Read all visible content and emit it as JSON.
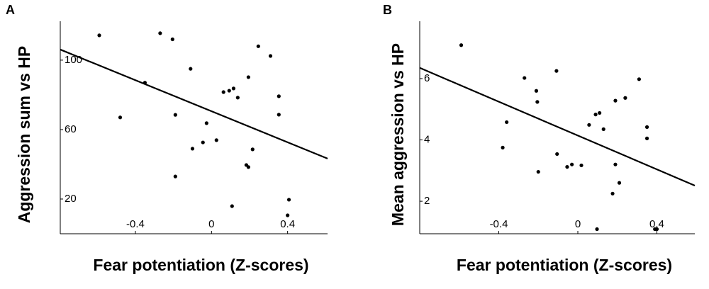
{
  "chart_data": [
    {
      "type": "scatter",
      "panel_label": "A",
      "x_label": "Fear potentiation (Z-scores)",
      "y_label": "Aggression sum vs HP",
      "color": "#000000",
      "x": [
        -0.59,
        -0.27,
        -0.205,
        -0.35,
        -0.48,
        -0.19,
        -0.19,
        -0.11,
        -0.1,
        -0.045,
        -0.026,
        0.026,
        0.063,
        0.093,
        0.116,
        0.138,
        0.194,
        0.183,
        0.194,
        0.216,
        0.108,
        0.246,
        0.31,
        0.354,
        0.354,
        0.407,
        0.4
      ],
      "y": [
        114.3,
        115.5,
        112,
        87,
        67,
        68.5,
        33,
        95,
        49,
        52.6,
        63.7,
        53.9,
        81.6,
        82.4,
        83.7,
        78.4,
        90.2,
        39.6,
        38.4,
        48.6,
        15.9,
        108,
        102.4,
        79.2,
        68.6,
        19.6,
        10.6
      ],
      "fit_line": {
        "x": [
          -0.795,
          0.61
        ],
        "y": [
          106.1,
          43.3
        ]
      },
      "xlim": [
        -0.795,
        0.61
      ],
      "ylim": [
        0,
        122.4
      ],
      "xticks": [
        -0.4,
        0,
        0.4
      ],
      "yticks": [
        20,
        60,
        100
      ]
    },
    {
      "type": "scatter",
      "panel_label": "B",
      "x_label": "Fear potentiation (Z-scores)",
      "y_label": "Mean aggression vs HP",
      "color": "#000000",
      "x": [
        -0.59,
        -0.27,
        -0.21,
        -0.205,
        -0.108,
        -0.36,
        -0.38,
        -0.2,
        -0.105,
        -0.054,
        -0.03,
        0.018,
        0.057,
        0.09,
        0.11,
        0.13,
        0.19,
        0.24,
        0.31,
        0.35,
        0.35,
        0.19,
        0.21,
        0.176,
        0.097,
        0.39,
        0.4
      ],
      "y": [
        7.09,
        6.02,
        5.6,
        5.24,
        6.25,
        4.58,
        3.75,
        2.96,
        3.54,
        3.12,
        3.2,
        3.17,
        4.49,
        4.83,
        4.88,
        4.35,
        5.28,
        5.37,
        5.98,
        4.42,
        4.05,
        3.2,
        2.6,
        2.25,
        1.09,
        1.09,
        1.09
      ],
      "fit_line": {
        "x": [
          -0.8,
          0.592
        ],
        "y": [
          6.35,
          2.51
        ]
      },
      "xlim": [
        -0.8,
        0.592
      ],
      "ylim": [
        0.94,
        7.87
      ],
      "xticks": [
        -0.4,
        0,
        0.4
      ],
      "yticks": [
        2,
        4,
        6
      ]
    }
  ]
}
